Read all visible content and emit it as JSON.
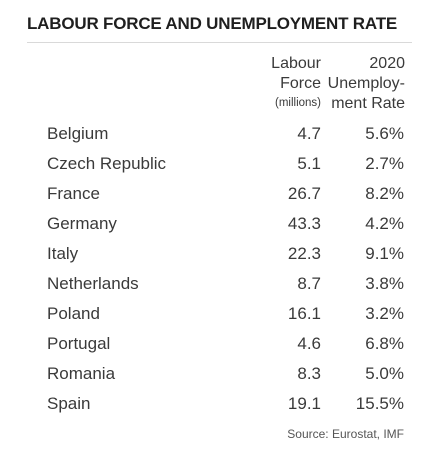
{
  "title": "LABOUR FORCE AND UNEMPLOYMENT RATE",
  "headers": {
    "labour_force_line1": "Labour",
    "labour_force_line2": "Force",
    "labour_force_unit": "(millions)",
    "unemployment_line1": "2020",
    "unemployment_line2": "Unemploy-",
    "unemployment_line3": "ment Rate"
  },
  "rows": [
    {
      "country": "Belgium",
      "labour_force": "4.7",
      "unemployment_rate": "5.6%"
    },
    {
      "country": "Czech Republic",
      "labour_force": "5.1",
      "unemployment_rate": "2.7%"
    },
    {
      "country": "France",
      "labour_force": "26.7",
      "unemployment_rate": "8.2%"
    },
    {
      "country": "Germany",
      "labour_force": "43.3",
      "unemployment_rate": "4.2%"
    },
    {
      "country": "Italy",
      "labour_force": "22.3",
      "unemployment_rate": "9.1%"
    },
    {
      "country": "Netherlands",
      "labour_force": "8.7",
      "unemployment_rate": "3.8%"
    },
    {
      "country": "Poland",
      "labour_force": "16.1",
      "unemployment_rate": "3.2%"
    },
    {
      "country": "Portugal",
      "labour_force": "4.6",
      "unemployment_rate": "6.8%"
    },
    {
      "country": "Romania",
      "labour_force": "8.3",
      "unemployment_rate": "5.0%"
    },
    {
      "country": "Spain",
      "labour_force": "19.1",
      "unemployment_rate": "15.5%"
    }
  ],
  "source": "Source: Eurostat, IMF"
}
